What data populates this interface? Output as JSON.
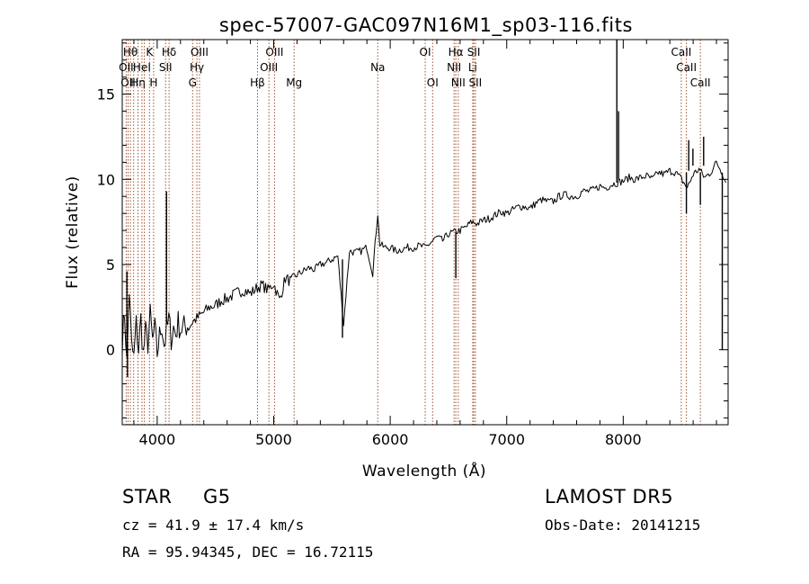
{
  "chart_data": {
    "type": "line",
    "title": "spec-57007-GAC097N16M1_sp03-116.fits",
    "xlabel": "Wavelength (Å)",
    "ylabel": "Flux (relative)",
    "xlim": [
      3700,
      8900
    ],
    "ylim": [
      -4.4,
      18.2
    ],
    "xticks": [
      4000,
      5000,
      6000,
      7000,
      8000
    ],
    "yticks": [
      0,
      5,
      10,
      15
    ],
    "grid": false,
    "series": [
      {
        "x": [
          3700,
          3720,
          3740,
          3760,
          3780,
          3800,
          3820,
          3840,
          3860,
          3880,
          3900,
          3920,
          3940,
          3960,
          3980,
          4000,
          4020,
          4040,
          4060,
          4080,
          4100,
          4120,
          4140,
          4160,
          4180,
          4200,
          4250,
          4300,
          4350,
          4400,
          4450,
          4500,
          4550,
          4600,
          4650,
          4700,
          4750,
          4800,
          4850,
          4900,
          4950,
          5000,
          5050,
          5100,
          5150,
          5200,
          5250,
          5300,
          5350,
          5400,
          5450,
          5500,
          5550,
          5600,
          5650,
          5700,
          5750,
          5800,
          5850,
          5880,
          5893,
          5910,
          5950,
          6000,
          6050,
          6100,
          6150,
          6200,
          6250,
          6300,
          6350,
          6400,
          6450,
          6500,
          6550,
          6600,
          6650,
          6700,
          6750,
          6800,
          6850,
          6900,
          6950,
          7000,
          7050,
          7100,
          7150,
          7200,
          7250,
          7300,
          7350,
          7400,
          7450,
          7500,
          7550,
          7600,
          7650,
          7700,
          7750,
          7800,
          7850,
          7900,
          7950,
          8000,
          8050,
          8100,
          8150,
          8200,
          8250,
          8300,
          8350,
          8400,
          8450,
          8500,
          8550,
          8600,
          8650,
          8700,
          8750,
          8800,
          8850,
          8880
        ],
        "y": [
          0.5,
          2.2,
          -0.8,
          3.5,
          0.2,
          -0.5,
          1.5,
          0.0,
          1.8,
          -0.3,
          1.0,
          0.4,
          2.0,
          0.5,
          1.2,
          -0.2,
          0.8,
          1.5,
          0.3,
          1.0,
          1.8,
          0.7,
          1.3,
          0.9,
          1.6,
          1.2,
          1.4,
          1.6,
          1.9,
          2.2,
          2.5,
          2.6,
          2.9,
          3.0,
          3.2,
          3.4,
          3.5,
          3.3,
          3.6,
          3.8,
          3.5,
          3.9,
          2.9,
          4.2,
          4.0,
          4.4,
          4.6,
          4.8,
          4.7,
          5.0,
          5.1,
          5.3,
          5.5,
          1.5,
          5.8,
          5.7,
          5.8,
          6.0,
          4.5,
          7.0,
          8.0,
          6.2,
          6.0,
          6.0,
          5.8,
          5.9,
          6.0,
          6.0,
          6.1,
          6.0,
          6.3,
          6.6,
          6.4,
          6.8,
          6.9,
          7.0,
          7.2,
          7.5,
          7.4,
          7.6,
          7.7,
          7.9,
          8.1,
          8.0,
          8.2,
          8.4,
          8.4,
          8.3,
          8.6,
          8.8,
          8.7,
          8.7,
          9.0,
          9.1,
          9.0,
          9.0,
          9.3,
          9.3,
          9.4,
          9.6,
          9.5,
          9.7,
          9.8,
          9.9,
          10.1,
          10.0,
          10.1,
          10.2,
          10.0,
          10.4,
          10.3,
          10.5,
          10.4,
          10.0,
          9.5,
          10.3,
          10.6,
          10.1,
          10.4,
          11.0,
          10.4,
          9.8
        ]
      }
    ],
    "spikes": [
      {
        "x": 3740,
        "from": 0.0,
        "to": 4.6
      },
      {
        "x": 3745,
        "from": 0.5,
        "to": -1.6
      },
      {
        "x": 4080,
        "from": 1.6,
        "to": 9.3
      },
      {
        "x": 5590,
        "from": 5.3,
        "to": 0.7
      },
      {
        "x": 6563,
        "from": 6.9,
        "to": 4.2
      },
      {
        "x": 7945,
        "from": 9.8,
        "to": 18.2
      },
      {
        "x": 7960,
        "from": 10.0,
        "to": 14.0
      },
      {
        "x": 8542,
        "from": 10.4,
        "to": 8.0
      },
      {
        "x": 8562,
        "from": 10.5,
        "to": 12.3
      },
      {
        "x": 8598,
        "from": 10.8,
        "to": 11.8
      },
      {
        "x": 8662,
        "from": 10.4,
        "to": 8.5
      },
      {
        "x": 8690,
        "from": 10.8,
        "to": 12.5
      },
      {
        "x": 8850,
        "from": 10.4,
        "to": 0.0
      }
    ],
    "lines": [
      {
        "x": 3734,
        "labels": [
          "OII"
        ]
      },
      {
        "x": 3750,
        "labels": [
          "OII"
        ]
      },
      {
        "x": 3770,
        "labels": [
          "Hθ"
        ]
      },
      {
        "x": 3798,
        "labels": [
          "Hθ"
        ]
      },
      {
        "x": 3835,
        "labels": [
          "Hη"
        ]
      },
      {
        "x": 3869,
        "labels": [
          "HeI"
        ]
      },
      {
        "x": 3889,
        "labels": [
          "Hη"
        ]
      },
      {
        "x": 3934,
        "labels": [
          "K"
        ]
      },
      {
        "x": 3969,
        "labels": [
          "H"
        ]
      },
      {
        "x": 4072,
        "labels": [
          "SII"
        ]
      },
      {
        "x": 4102,
        "labels": [
          "Hδ"
        ]
      },
      {
        "x": 4304,
        "labels": [
          "G"
        ]
      },
      {
        "x": 4341,
        "labels": [
          "Hγ"
        ]
      },
      {
        "x": 4363,
        "labels": [
          "OIII"
        ]
      },
      {
        "x": 4861,
        "labels": [
          "Hβ"
        ]
      },
      {
        "x": 4959,
        "labels": [
          "OIII"
        ]
      },
      {
        "x": 5007,
        "labels": [
          "OIII"
        ]
      },
      {
        "x": 5175,
        "labels": [
          "Mg"
        ]
      },
      {
        "x": 5893,
        "labels": [
          "Na"
        ]
      },
      {
        "x": 6300,
        "labels": [
          "OI"
        ]
      },
      {
        "x": 6364,
        "labels": [
          "OI"
        ]
      },
      {
        "x": 6548,
        "labels": [
          "NII"
        ]
      },
      {
        "x": 6563,
        "labels": [
          "Hα"
        ]
      },
      {
        "x": 6584,
        "labels": [
          "NII"
        ]
      },
      {
        "x": 6708,
        "labels": [
          "Li"
        ]
      },
      {
        "x": 6717,
        "labels": [
          "SII"
        ]
      },
      {
        "x": 6731,
        "labels": [
          "SII"
        ]
      },
      {
        "x": 8498,
        "labels": [
          "CaII"
        ]
      },
      {
        "x": 8542,
        "labels": [
          "CaII"
        ]
      },
      {
        "x": 8662,
        "labels": [
          "CaII"
        ]
      }
    ],
    "line_labels": [
      {
        "text": "Hθ",
        "x": 3770,
        "row": 0
      },
      {
        "text": "K",
        "x": 3934,
        "row": 0
      },
      {
        "text": "Hδ",
        "x": 4102,
        "row": 0
      },
      {
        "text": "OIII",
        "x": 4363,
        "row": 0
      },
      {
        "text": "OIII",
        "x": 5007,
        "row": 0
      },
      {
        "text": "OI",
        "x": 6300,
        "row": 0
      },
      {
        "text": "Hα",
        "x": 6563,
        "row": 0
      },
      {
        "text": "SII",
        "x": 6717,
        "row": 0
      },
      {
        "text": "CaII",
        "x": 8498,
        "row": 0
      },
      {
        "text": "OII",
        "x": 3734,
        "row": 1
      },
      {
        "text": "HeI",
        "x": 3869,
        "row": 1
      },
      {
        "text": "SII",
        "x": 4072,
        "row": 1
      },
      {
        "text": "Hγ",
        "x": 4341,
        "row": 1
      },
      {
        "text": "OIII",
        "x": 4959,
        "row": 1
      },
      {
        "text": "Na",
        "x": 5893,
        "row": 1
      },
      {
        "text": "NII",
        "x": 6548,
        "row": 1
      },
      {
        "text": "Li",
        "x": 6708,
        "row": 1
      },
      {
        "text": "CaII",
        "x": 8542,
        "row": 1
      },
      {
        "text": "OII",
        "x": 3750,
        "row": 2
      },
      {
        "text": "Hη",
        "x": 3835,
        "row": 2
      },
      {
        "text": "H",
        "x": 3969,
        "row": 2
      },
      {
        "text": "G",
        "x": 4304,
        "row": 2
      },
      {
        "text": "Hβ",
        "x": 4861,
        "row": 2
      },
      {
        "text": "Mg",
        "x": 5175,
        "row": 2
      },
      {
        "text": "OI",
        "x": 6364,
        "row": 2
      },
      {
        "text": "NII",
        "x": 6584,
        "row": 2
      },
      {
        "text": "SII",
        "x": 6731,
        "row": 2
      },
      {
        "text": "CaII",
        "x": 8662,
        "row": 2
      }
    ]
  },
  "info": {
    "class": "STAR",
    "subclass": "G5",
    "survey": "LAMOST DR5",
    "cz": "cz = 41.9 ± 17.4 km/s",
    "obs_date": "Obs-Date: 20141215",
    "coords": "RA =  95.94345, DEC =  16.72115"
  },
  "colors": {
    "spectrum": "#000000",
    "line_marker": "#a0522d",
    "axis": "#000000",
    "background": "#ffffff"
  }
}
